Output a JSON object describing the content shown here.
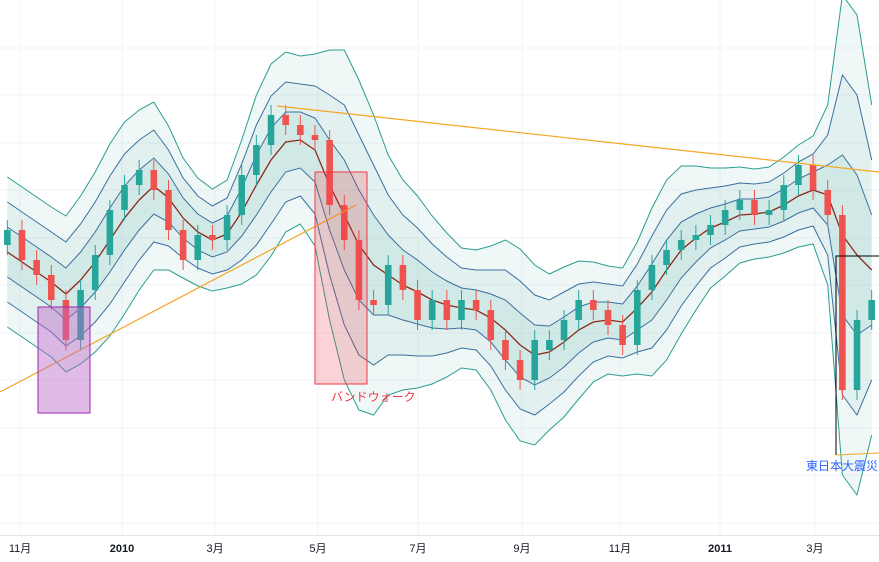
{
  "chart_data": {
    "type": "candlestick",
    "open": [
      58,
      61,
      55,
      52,
      47,
      39,
      49,
      56,
      65,
      70,
      73,
      69,
      61,
      55,
      60,
      59,
      64,
      72,
      78,
      84,
      82,
      80,
      79,
      66,
      59,
      47,
      46,
      54,
      49,
      43,
      47,
      43,
      47,
      45,
      39,
      35,
      31,
      37,
      39,
      43,
      47,
      45,
      42,
      38,
      49,
      54,
      57,
      59,
      60,
      62,
      65,
      67,
      64,
      65,
      70,
      74,
      69,
      64,
      29,
      43
    ],
    "high": [
      63,
      63,
      57,
      54,
      49,
      51,
      58,
      67,
      72,
      75,
      75,
      71,
      63,
      62,
      62,
      66,
      74,
      80,
      86,
      86,
      84,
      82,
      81,
      68,
      61,
      49,
      56,
      56,
      51,
      49,
      49,
      49,
      49,
      47,
      41,
      37,
      41,
      41,
      45,
      49,
      49,
      47,
      44,
      51,
      56,
      59,
      61,
      62,
      64,
      67,
      69,
      69,
      67,
      72,
      76,
      76,
      71,
      66,
      45,
      49
    ],
    "low": [
      56,
      53,
      50,
      45,
      37,
      37,
      47,
      54,
      63,
      68,
      67,
      59,
      53,
      53,
      57,
      57,
      62,
      70,
      76,
      80,
      78,
      77,
      64,
      57,
      45,
      44,
      44,
      47,
      41,
      41,
      41,
      41,
      43,
      37,
      33,
      29,
      29,
      35,
      37,
      41,
      43,
      40,
      36,
      36,
      47,
      52,
      55,
      57,
      58,
      60,
      63,
      62,
      62,
      63,
      68,
      67,
      62,
      27,
      27,
      41
    ],
    "close": [
      61,
      55,
      52,
      47,
      39,
      49,
      56,
      65,
      70,
      73,
      69,
      61,
      55,
      60,
      59,
      64,
      72,
      78,
      84,
      82,
      80,
      79,
      66,
      59,
      47,
      46,
      54,
      49,
      43,
      47,
      43,
      47,
      45,
      39,
      35,
      31,
      39,
      39,
      43,
      47,
      45,
      42,
      38,
      49,
      54,
      57,
      59,
      60,
      62,
      65,
      67,
      64,
      65,
      70,
      74,
      69,
      64,
      29,
      43,
      47
    ],
    "mid": [
      56.6,
      54.6,
      52.6,
      50.6,
      48.2,
      51,
      54.6,
      59,
      63.4,
      67,
      69.8,
      67.4,
      63.4,
      60.6,
      59,
      60.2,
      64.6,
      70,
      75,
      78.6,
      79,
      77,
      70,
      64,
      58,
      54,
      52,
      50,
      48.6,
      47,
      46,
      45.4,
      45,
      43.4,
      41,
      38,
      36,
      36.6,
      38.6,
      41,
      42.6,
      43,
      42.6,
      45.4,
      48.6,
      53,
      57,
      59.4,
      61.4,
      62.6,
      64,
      64.2,
      64.6,
      66,
      67.8,
      69,
      68,
      60,
      56,
      53
    ],
    "sd": [
      5,
      5,
      5,
      5,
      5.2,
      5.6,
      6,
      6.4,
      6.4,
      6,
      5.6,
      4.8,
      4,
      3.6,
      3.4,
      3.6,
      4.8,
      6,
      6.4,
      6,
      5.6,
      6.4,
      9,
      11,
      11,
      10,
      8,
      7,
      6.4,
      5.6,
      4.8,
      4,
      4,
      4.8,
      6,
      6.4,
      6,
      5.2,
      5,
      4.6,
      4,
      3.6,
      3.6,
      4.4,
      5.6,
      6,
      5.6,
      4.8,
      4,
      3.6,
      3.2,
      3,
      3,
      3.2,
      3.4,
      3.6,
      6,
      16,
      16,
      11
    ],
    "sigmas": [
      1,
      2,
      3
    ],
    "up_color": "#26a69a",
    "down_color": "#ef5350",
    "band_color": "#2a9d8f",
    "inner_band_color": "#3b6fa0",
    "mid_color": "#8b2a1a",
    "xlim": [
      0,
      60
    ],
    "ylim": [
      0,
      107
    ],
    "xticks": [
      {
        "value": 1.37,
        "label": "11月"
      },
      {
        "value": 8.33,
        "label": "2010"
      },
      {
        "value": 14.68,
        "label": "3月"
      },
      {
        "value": 21.7,
        "label": "5月"
      },
      {
        "value": 28.53,
        "label": "7月"
      },
      {
        "value": 35.63,
        "label": "9月"
      },
      {
        "value": 42.32,
        "label": "11月"
      },
      {
        "value": 49.15,
        "label": "2011"
      },
      {
        "value": 55.63,
        "label": "3月"
      }
    ],
    "annotations": [
      "バンドウォーク",
      "東日本大震災"
    ],
    "grid": true
  }
}
